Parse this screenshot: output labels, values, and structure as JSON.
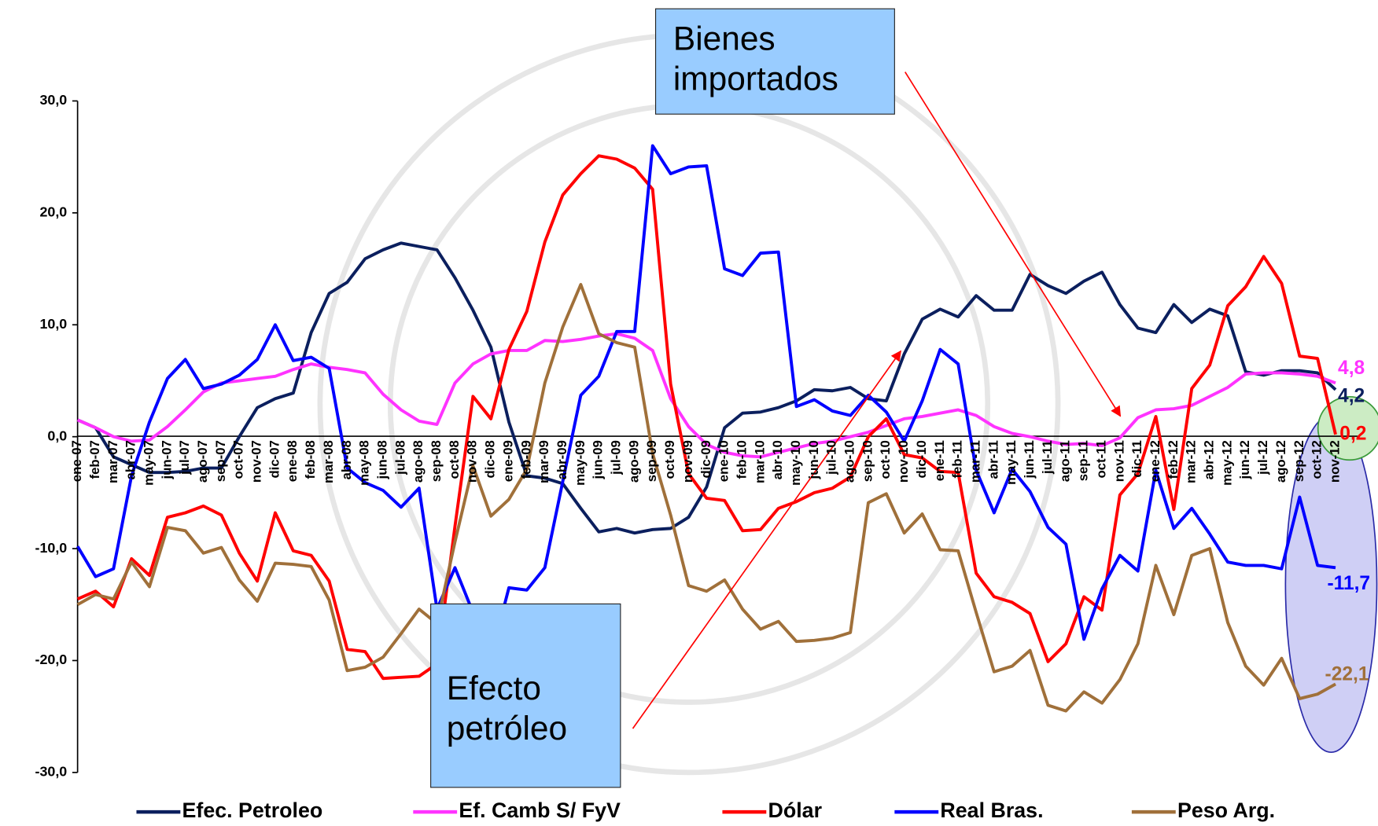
{
  "chart_data": {
    "type": "line",
    "categories": [
      "ene-07",
      "feb-07",
      "mar-07",
      "abr-07",
      "may-07",
      "jun-07",
      "jul-07",
      "ago-07",
      "sep-07",
      "oct-07",
      "nov-07",
      "dic-07",
      "ene-08",
      "feb-08",
      "mar-08",
      "abr-08",
      "may-08",
      "jun-08",
      "jul-08",
      "ago-08",
      "sep-08",
      "oct-08",
      "nov-08",
      "dic-08",
      "ene-09",
      "feb-09",
      "mar-09",
      "abr-09",
      "may-09",
      "jun-09",
      "jul-09",
      "ago-09",
      "sep-09",
      "oct-09",
      "nov-09",
      "dic-09",
      "ene-10",
      "feb-10",
      "mar-10",
      "abr-10",
      "may-10",
      "jun-10",
      "jul-10",
      "ago-10",
      "sep-10",
      "oct-10",
      "nov-10",
      "dic-10",
      "ene-11",
      "feb-11",
      "mar-11",
      "abr-11",
      "may-11",
      "jun-11",
      "jul-11",
      "ago-11",
      "sep-11",
      "oct-11",
      "nov-11",
      "dic-11",
      "ene-12",
      "feb-12",
      "mar-12",
      "abr-12",
      "may-12",
      "jun-12",
      "jul-12",
      "ago-12",
      "sep-12",
      "oct-12",
      "nov-12"
    ],
    "series": [
      {
        "name": "Efec. Petroleo",
        "color": "#0b1f5e",
        "values": [
          1.5,
          0.8,
          -1.8,
          -2.5,
          -3.2,
          -3.2,
          -3.1,
          -2.8,
          -2.8,
          0,
          2.6,
          3.4,
          3.9,
          9.3,
          12.8,
          13.8,
          15.9,
          16.7,
          17.3,
          17.0,
          16.7,
          14.2,
          11.3,
          8.0,
          1.3,
          -3.5,
          -3.7,
          -4.2,
          -6.4,
          -8.5,
          -8.2,
          -8.6,
          -8.3,
          -8.2,
          -7.2,
          -4.5,
          0.8,
          2.1,
          2.2,
          2.6,
          3.2,
          4.2,
          4.1,
          4.4,
          3.4,
          3.2,
          7.4,
          10.5,
          11.4,
          10.7,
          12.6,
          11.3,
          11.3,
          14.5,
          13.5,
          12.8,
          13.9,
          14.7,
          11.8,
          9.7,
          9.3,
          11.8,
          10.2,
          11.4,
          10.8,
          5.8,
          5.5,
          5.9,
          5.9,
          5.7,
          4.2
        ],
        "value_labels": {
          "70": "4,2"
        }
      },
      {
        "name": "Ef. Camb S/ FyV",
        "color": "#ff33ff",
        "values": [
          1.5,
          0.8,
          0,
          -0.4,
          -0.3,
          0.9,
          2.4,
          4.0,
          4.8,
          5.0,
          5.2,
          5.4,
          6.0,
          6.5,
          6.2,
          6.0,
          5.7,
          3.8,
          2.4,
          1.4,
          1.1,
          4.8,
          6.5,
          7.4,
          7.7,
          7.7,
          8.6,
          8.5,
          8.7,
          9.0,
          9.2,
          8.8,
          7.7,
          3.4,
          0.9,
          -0.7,
          -1.4,
          -1.7,
          -1.8,
          -1.4,
          -1.0,
          -0.6,
          -0.4,
          0.0,
          0.4,
          1.0,
          1.6,
          1.8,
          2.1,
          2.4,
          1.9,
          0.9,
          0.3,
          0.0,
          -0.4,
          -0.7,
          -0.6,
          -0.8,
          -0.1,
          1.7,
          2.4,
          2.5,
          2.8,
          3.6,
          4.4,
          5.6,
          5.7,
          5.7,
          5.6,
          5.4,
          4.8
        ],
        "value_labels": {
          "70": "4,8"
        }
      },
      {
        "name": "Dólar",
        "color": "#ff0000",
        "values": [
          -14.5,
          -13.8,
          -15.2,
          -10.9,
          -12.4,
          -7.2,
          -6.8,
          -6.2,
          -7.0,
          -10.4,
          -12.9,
          -6.8,
          -10.2,
          -10.6,
          -12.9,
          -19.0,
          -19.2,
          -21.6,
          -21.5,
          -21.4,
          -20.3,
          -8,
          3.6,
          1.6,
          7.8,
          11.2,
          17.4,
          21.6,
          23.5,
          25.1,
          24.8,
          24.0,
          22.1,
          4.7,
          -3.3,
          -5.5,
          -5.7,
          -8.4,
          -8.3,
          -6.4,
          -5.8,
          -5.0,
          -4.6,
          -3.6,
          0,
          1.6,
          -1.6,
          -1.9,
          -3.1,
          -3.2,
          -12.2,
          -14.3,
          -14.8,
          -15.8,
          -20.1,
          -18.5,
          -14.3,
          -15.5,
          -5.2,
          -3.3,
          1.8,
          -6.5,
          4.3,
          6.4,
          11.7,
          13.4,
          16.1,
          13.7,
          7.2,
          7.0,
          0.2
        ],
        "value_labels": {
          "70": "0,2"
        }
      },
      {
        "name": "Real Bras.",
        "color": "#0000ff",
        "values": [
          -9.8,
          -12.5,
          -11.8,
          -3.5,
          1.3,
          5.2,
          6.9,
          4.3,
          4.7,
          5.5,
          6.9,
          10.0,
          6.8,
          7.1,
          6.1,
          -2.8,
          -4.1,
          -4.8,
          -6.3,
          -4.6,
          -15.4,
          -11.7,
          -15.7,
          -19.7,
          -13.5,
          -13.7,
          -11.7,
          -4,
          3.7,
          5.4,
          9.4,
          9.4,
          26.0,
          23.5,
          24.1,
          24.2,
          15.0,
          14.4,
          16.4,
          16.5,
          2.7,
          3.3,
          2.3,
          1.9,
          3.7,
          2.2,
          -0.4,
          3.2,
          7.8,
          6.5,
          -3,
          -6.8,
          -2.9,
          -4.9,
          -8.1,
          -9.6,
          -18.1,
          -13.6,
          -10.6,
          -12.0,
          -3.0,
          -8.2,
          -6.4,
          -8.7,
          -11.2,
          -11.5,
          -11.5,
          -11.8,
          -5.4,
          -11.5,
          -11.7
        ],
        "value_labels": {
          "70": "-11,7"
        }
      },
      {
        "name": "Peso Arg.",
        "color": "#a0703a",
        "values": [
          -15.0,
          -14.1,
          -14.5,
          -11.2,
          -13.4,
          -8.1,
          -8.4,
          -10.4,
          -9.9,
          -12.8,
          -14.7,
          -11.3,
          -11.4,
          -11.6,
          -14.6,
          -20.9,
          -20.6,
          -19.7,
          -17.6,
          -15.4,
          -16.7,
          -9.4,
          -2.6,
          -7.1,
          -5.6,
          -2.9,
          4.8,
          9.8,
          13.6,
          9.2,
          8.4,
          8.0,
          -1.5,
          -7.0,
          -13.3,
          -13.8,
          -12.8,
          -15.4,
          -17.2,
          -16.5,
          -18.3,
          -18.2,
          -18.0,
          -17.5,
          -5.9,
          -5.1,
          -8.6,
          -6.9,
          -10.1,
          -10.2,
          -15.7,
          -21.0,
          -20.5,
          -19.1,
          -24.0,
          -24.5,
          -22.8,
          -23.8,
          -21.7,
          -18.5,
          -11.5,
          -15.9,
          -10.6,
          -10.0,
          -16.6,
          -20.5,
          -22.2,
          -19.8,
          -23.4,
          -23.0,
          -22.1
        ],
        "value_labels": {
          "70": "-22,1"
        }
      }
    ],
    "ylim": [
      -30,
      30
    ],
    "yticks": [
      {
        "value": -30,
        "label": "-30,0"
      },
      {
        "value": -20,
        "label": "-20,0"
      },
      {
        "value": -10,
        "label": "-10,0"
      },
      {
        "value": 0,
        "label": "0,0"
      },
      {
        "value": 10,
        "label": "10,0"
      },
      {
        "value": 20,
        "label": "20,0"
      },
      {
        "value": 30,
        "label": "30,0"
      }
    ],
    "annotations": [
      "Bienes importados",
      "Efecto petróleo"
    ],
    "legend": "bottom"
  }
}
